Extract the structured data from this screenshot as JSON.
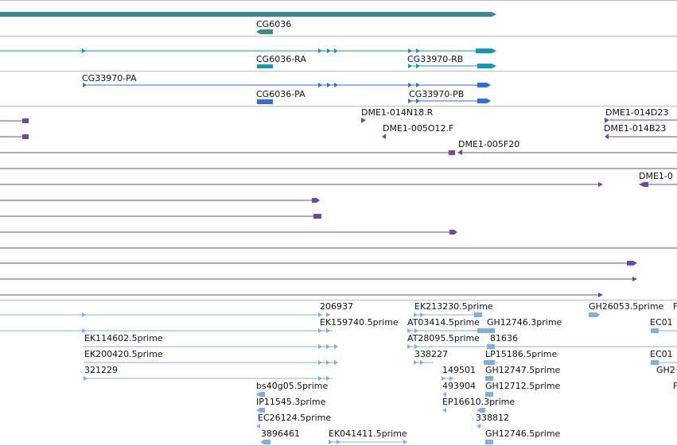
{
  "colors": {
    "gene": "#368c8c",
    "transcript": "#0f9bb0",
    "protein": "#2f6fd2",
    "clone": "#6b4aa3",
    "est": "#7fb0dc",
    "divider": "#bfbfbf"
  },
  "tracks": {
    "gene": {
      "labels": [
        "CG6036"
      ]
    },
    "transcripts": {
      "labels": [
        "CG6036-RA",
        "CG33970-RB"
      ]
    },
    "proteins": {
      "labels": [
        "CG33970-PA",
        "CG6036-PA",
        "CG33970-PB"
      ]
    },
    "clones": {
      "labels": [
        "DME1-014N18.R",
        "DME1-014D23",
        "DME1-005O12.F",
        "DME1-014B23",
        "DME1-005F20",
        "DME1-0"
      ]
    },
    "ests": {
      "labels": [
        "206937",
        "EK213230.5prime",
        "GH26053.5prime",
        "F",
        "EK159740.5prime",
        "AT03414.5prime",
        "GH12746.3prime",
        "EC01",
        "EK114602.5prime",
        "AT28095.5prime",
        "81636",
        "EK200420.5prime",
        "338227",
        "LP15186.5prime",
        "EC01",
        "321229",
        "149501",
        "GH12747.5prime",
        "GH2",
        "bs40g05.5prime",
        "493904",
        "GH12712.5prime",
        "F",
        "IP11545.3prime",
        "EP16610.3prime",
        "EC26124.5prime",
        "338812",
        "3896461",
        "EK041411.5prime",
        "GH12746.5prime"
      ]
    }
  }
}
